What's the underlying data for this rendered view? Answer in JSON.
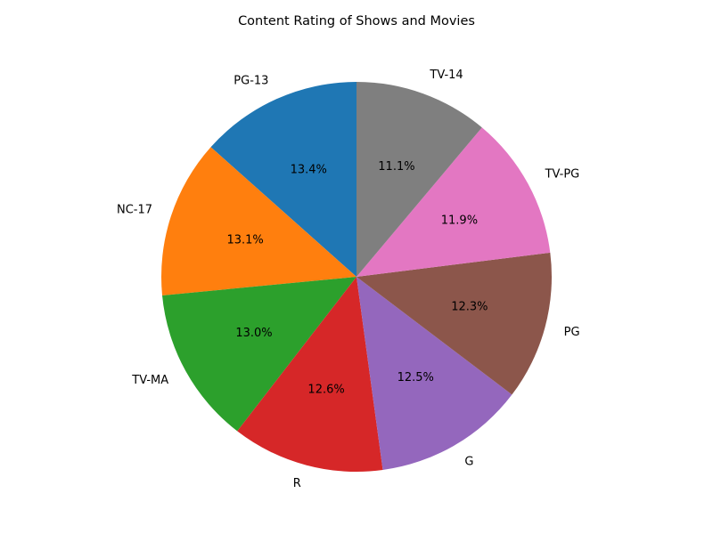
{
  "chart_data": {
    "type": "pie",
    "title": "Content Rating of Shows and Movies",
    "start_angle_deg": 90,
    "direction": "counterclockwise",
    "label_format": "percent_one_decimal",
    "slices": [
      {
        "label": "PG-13",
        "value": 13.4,
        "pct_label": "13.4%",
        "color": "#1f77b4"
      },
      {
        "label": "NC-17",
        "value": 13.1,
        "pct_label": "13.1%",
        "color": "#ff7f0e"
      },
      {
        "label": "TV-MA",
        "value": 13.0,
        "pct_label": "13.0%",
        "color": "#2ca02c"
      },
      {
        "label": "R",
        "value": 12.6,
        "pct_label": "12.6%",
        "color": "#d62728"
      },
      {
        "label": "G",
        "value": 12.5,
        "pct_label": "12.5%",
        "color": "#9467bd"
      },
      {
        "label": "PG",
        "value": 12.3,
        "pct_label": "12.3%",
        "color": "#8c564b"
      },
      {
        "label": "TV-PG",
        "value": 11.9,
        "pct_label": "11.9%",
        "color": "#e377c2"
      },
      {
        "label": "TV-14",
        "value": 11.1,
        "pct_label": "11.1%",
        "color": "#7f7f7f"
      }
    ]
  }
}
